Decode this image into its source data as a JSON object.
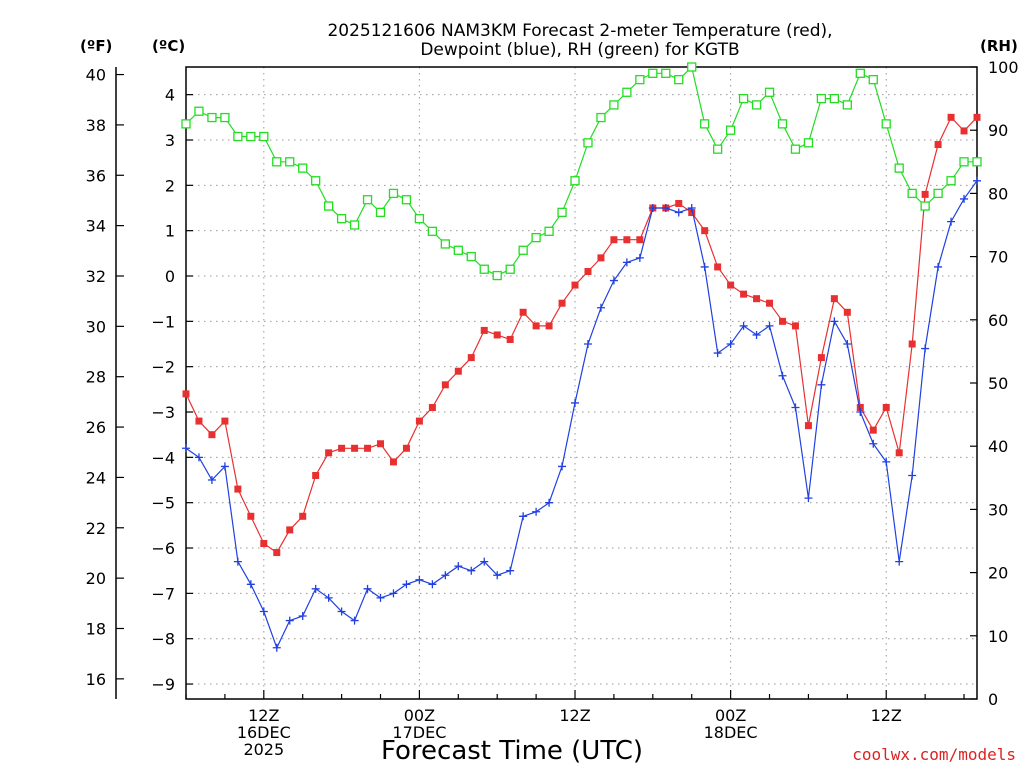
{
  "chart_data": {
    "type": "line",
    "title": [
      "2025121606 NAM3KM Forecast 2-meter Temperature (red),",
      "Dewpoint (blue), RH (green) for KGTB"
    ],
    "xlabel": "Forecast Time (UTC)",
    "x_unit": "forecast hour",
    "xlim": [
      0,
      61
    ],
    "x_ticks": [
      {
        "x": 6,
        "lines": [
          "12Z",
          "16DEC",
          "2025"
        ]
      },
      {
        "x": 18,
        "lines": [
          "00Z",
          "17DEC"
        ]
      },
      {
        "x": 30,
        "lines": [
          "12Z"
        ]
      },
      {
        "x": 42,
        "lines": [
          "00Z",
          "18DEC"
        ]
      },
      {
        "x": 54,
        "lines": [
          "12Z"
        ]
      }
    ],
    "left_axes": [
      {
        "unit_label": "(ºF)",
        "lim": [
          15.2,
          40.3
        ],
        "ticks": [
          16,
          18,
          20,
          22,
          24,
          26,
          28,
          30,
          32,
          34,
          36,
          38,
          40
        ]
      },
      {
        "unit_label": "(ºC)",
        "lim": [
          -9.33,
          4.61
        ],
        "ticks": [
          -9,
          -8,
          -7,
          -6,
          -5,
          -4,
          -3,
          -2,
          -1,
          0,
          1,
          2,
          3,
          4
        ]
      }
    ],
    "right_axis": {
      "unit_label": "(RH)",
      "lim": [
        0,
        100
      ],
      "ticks": [
        0,
        10,
        20,
        30,
        40,
        50,
        60,
        70,
        80,
        90,
        100
      ]
    },
    "series": [
      {
        "name": "Temperature (°C)",
        "color": "#e83030",
        "marker": "filled-square",
        "axis": "celsius",
        "x": [
          0,
          1,
          2,
          3,
          4,
          5,
          6,
          7,
          8,
          9,
          10,
          11,
          12,
          13,
          14,
          15,
          16,
          17,
          18,
          19,
          20,
          21,
          22,
          23,
          24,
          25,
          26,
          27,
          28,
          29,
          30,
          31,
          32,
          33,
          34,
          35,
          36,
          37,
          38,
          39,
          40,
          41,
          42,
          43,
          44,
          45,
          46,
          47,
          48,
          49,
          50,
          51,
          52,
          53,
          54,
          55,
          56,
          57,
          58,
          59,
          60,
          61
        ],
        "values": [
          -2.6,
          -3.2,
          -3.5,
          -3.2,
          -4.7,
          -5.3,
          -5.9,
          -6.1,
          -5.6,
          -5.3,
          -4.4,
          -3.9,
          -3.8,
          -3.8,
          -3.8,
          -3.7,
          -4.1,
          -3.8,
          -3.2,
          -2.9,
          -2.4,
          -2.1,
          -1.8,
          -1.2,
          -1.3,
          -1.4,
          -0.8,
          -1.1,
          -1.1,
          -0.6,
          -0.2,
          0.1,
          0.4,
          0.8,
          0.8,
          0.8,
          1.5,
          1.5,
          1.6,
          1.4,
          1.0,
          0.2,
          -0.2,
          -0.4,
          -0.5,
          -0.6,
          -1.0,
          -1.1,
          -3.3,
          -1.8,
          -0.5,
          -0.8,
          -2.9,
          -3.4,
          -2.9,
          -3.9,
          -1.5,
          1.8,
          2.9,
          3.5,
          3.2,
          3.5
        ]
      },
      {
        "name": "Dewpoint (°C)",
        "color": "#2040e0",
        "marker": "plus",
        "axis": "celsius",
        "x": [
          0,
          1,
          2,
          3,
          4,
          5,
          6,
          7,
          8,
          9,
          10,
          11,
          12,
          13,
          14,
          15,
          16,
          17,
          18,
          19,
          20,
          21,
          22,
          23,
          24,
          25,
          26,
          27,
          28,
          29,
          30,
          31,
          32,
          33,
          34,
          35,
          36,
          37,
          38,
          39,
          40,
          41,
          42,
          43,
          44,
          45,
          46,
          47,
          48,
          49,
          50,
          51,
          52,
          53,
          54,
          55,
          56,
          57,
          58,
          59,
          60,
          61
        ],
        "values": [
          -3.8,
          -4.0,
          -4.5,
          -4.2,
          -6.3,
          -6.8,
          -7.4,
          -8.2,
          -7.6,
          -7.5,
          -6.9,
          -7.1,
          -7.4,
          -7.6,
          -6.9,
          -7.1,
          -7.0,
          -6.8,
          -6.7,
          -6.8,
          -6.6,
          -6.4,
          -6.5,
          -6.3,
          -6.6,
          -6.5,
          -5.3,
          -5.2,
          -5.0,
          -4.2,
          -2.8,
          -1.5,
          -0.7,
          -0.1,
          0.3,
          0.4,
          1.5,
          1.5,
          1.4,
          1.5,
          0.2,
          -1.7,
          -1.5,
          -1.1,
          -1.3,
          -1.1,
          -2.2,
          -2.9,
          -4.9,
          -2.4,
          -1.0,
          -1.5,
          -3.0,
          -3.7,
          -4.1,
          -6.3,
          -4.4,
          -1.6,
          0.2,
          1.2,
          1.7,
          2.1
        ]
      },
      {
        "name": "RH (%)",
        "color": "#22dd22",
        "marker": "open-square",
        "axis": "rh",
        "x": [
          0,
          1,
          2,
          3,
          4,
          5,
          6,
          7,
          8,
          9,
          10,
          11,
          12,
          13,
          14,
          15,
          16,
          17,
          18,
          19,
          20,
          21,
          22,
          23,
          24,
          25,
          26,
          27,
          28,
          29,
          30,
          31,
          32,
          33,
          34,
          35,
          36,
          37,
          38,
          39,
          40,
          41,
          42,
          43,
          44,
          45,
          46,
          47,
          48,
          49,
          50,
          51,
          52,
          53,
          54,
          55,
          56,
          57,
          58,
          59,
          60,
          61
        ],
        "values": [
          91,
          93,
          92,
          92,
          89,
          89,
          89,
          85,
          85,
          84,
          82,
          78,
          76,
          75,
          79,
          77,
          80,
          79,
          76,
          74,
          72,
          71,
          70,
          68,
          67,
          68,
          71,
          73,
          74,
          77,
          82,
          88,
          92,
          94,
          96,
          98,
          99,
          99,
          98,
          100,
          91,
          87,
          90,
          95,
          94,
          96,
          91,
          87,
          88,
          95,
          95,
          94,
          99,
          98,
          91,
          84,
          80,
          78,
          80,
          82,
          85,
          85
        ]
      }
    ]
  },
  "branding": "coolwx.com/models"
}
